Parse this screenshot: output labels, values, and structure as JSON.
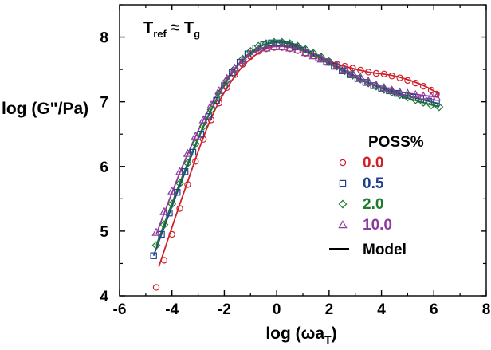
{
  "chart_data": {
    "type": "scatter",
    "xlabel": {
      "text": "log (ωa",
      "sub": "T",
      "close": ")"
    },
    "ylabel": "log (G\"/Pa)",
    "xlim": [
      -6,
      8
    ],
    "ylim": [
      4,
      8.5
    ],
    "xticks": [
      -6,
      -4,
      -2,
      0,
      2,
      4,
      6,
      8
    ],
    "yticks": [
      4,
      5,
      6,
      7,
      8
    ],
    "grid": false,
    "annotation": {
      "main": "T",
      "sub1": "ref",
      "approx": " ≈ T",
      "sub2": "g"
    },
    "legend": {
      "title": "POSS%",
      "placement": "right",
      "model_label": "Model"
    },
    "series": [
      {
        "name": "0.0",
        "marker": "circle",
        "color": "#d0202a",
        "x": [
          -4.6,
          -4.3,
          -4.0,
          -3.7,
          -3.4,
          -3.1,
          -2.8,
          -2.5,
          -2.2,
          -1.9,
          -1.6,
          -1.3,
          -1.0,
          -0.7,
          -0.4,
          -0.1,
          0.2,
          0.5,
          0.8,
          1.1,
          1.4,
          1.7,
          2.0,
          2.3,
          2.6,
          2.9,
          3.2,
          3.5,
          3.8,
          4.1,
          4.4,
          4.7,
          5.0,
          5.3,
          5.6,
          5.9,
          6.1
        ],
        "y": [
          4.13,
          4.55,
          4.95,
          5.35,
          5.72,
          6.08,
          6.42,
          6.72,
          6.98,
          7.22,
          7.42,
          7.58,
          7.7,
          7.78,
          7.82,
          7.84,
          7.84,
          7.82,
          7.79,
          7.75,
          7.71,
          7.66,
          7.62,
          7.58,
          7.55,
          7.52,
          7.49,
          7.46,
          7.44,
          7.43,
          7.4,
          7.37,
          7.33,
          7.29,
          7.24,
          7.18,
          7.12
        ],
        "model_x": [
          -4.5,
          -3.5,
          -2.5,
          -1.5,
          -0.5,
          0.5,
          1.5,
          2.5,
          3.5,
          4.5,
          5.5,
          6.2
        ],
        "model_y": [
          4.45,
          5.65,
          6.75,
          7.45,
          7.8,
          7.86,
          7.7,
          7.56,
          7.46,
          7.4,
          7.27,
          7.12
        ]
      },
      {
        "name": "0.5",
        "marker": "square",
        "color": "#1f3f8f",
        "x": [
          -4.7,
          -4.4,
          -4.1,
          -3.8,
          -3.5,
          -3.2,
          -2.9,
          -2.6,
          -2.3,
          -2.0,
          -1.7,
          -1.4,
          -1.1,
          -0.8,
          -0.5,
          -0.2,
          0.1,
          0.4,
          0.7,
          1.0,
          1.3,
          1.6,
          1.9,
          2.2,
          2.5,
          2.8,
          3.1,
          3.4,
          3.7,
          4.0,
          4.3,
          4.6,
          4.9,
          5.2,
          5.5,
          5.8,
          6.1
        ],
        "y": [
          4.62,
          4.95,
          5.28,
          5.6,
          5.92,
          6.22,
          6.5,
          6.77,
          7.02,
          7.25,
          7.45,
          7.61,
          7.74,
          7.83,
          7.88,
          7.91,
          7.91,
          7.89,
          7.85,
          7.8,
          7.74,
          7.68,
          7.62,
          7.55,
          7.48,
          7.42,
          7.36,
          7.3,
          7.25,
          7.21,
          7.17,
          7.13,
          7.1,
          7.07,
          7.04,
          7.01,
          6.98
        ],
        "model_x": [
          -4.7,
          -3.7,
          -2.7,
          -1.7,
          -0.7,
          0.3,
          1.3,
          2.3,
          3.3,
          4.3,
          5.3,
          6.2
        ],
        "model_y": [
          4.62,
          5.7,
          6.7,
          7.45,
          7.84,
          7.91,
          7.75,
          7.53,
          7.32,
          7.17,
          7.06,
          6.97
        ]
      },
      {
        "name": "2.0",
        "marker": "diamond",
        "color": "#1e7a2c",
        "x": [
          -4.6,
          -4.3,
          -4.0,
          -3.7,
          -3.4,
          -3.1,
          -2.8,
          -2.5,
          -2.2,
          -1.9,
          -1.6,
          -1.3,
          -1.0,
          -0.7,
          -0.4,
          -0.1,
          0.2,
          0.5,
          0.8,
          1.1,
          1.4,
          1.7,
          2.0,
          2.3,
          2.6,
          2.9,
          3.2,
          3.5,
          3.8,
          4.1,
          4.4,
          4.7,
          5.0,
          5.3,
          5.6,
          5.9,
          6.2
        ],
        "y": [
          4.78,
          5.1,
          5.42,
          5.74,
          6.05,
          6.35,
          6.62,
          6.88,
          7.12,
          7.33,
          7.51,
          7.66,
          7.78,
          7.86,
          7.9,
          7.92,
          7.92,
          7.9,
          7.86,
          7.81,
          7.75,
          7.69,
          7.62,
          7.55,
          7.48,
          7.41,
          7.35,
          7.29,
          7.24,
          7.19,
          7.15,
          7.11,
          7.07,
          7.03,
          6.99,
          6.95,
          6.92
        ],
        "model_x": [
          -4.6,
          -3.6,
          -2.6,
          -1.6,
          -0.6,
          0.4,
          1.4,
          2.4,
          3.4,
          4.4,
          5.4,
          6.2
        ],
        "model_y": [
          4.78,
          5.85,
          6.8,
          7.51,
          7.87,
          7.92,
          7.75,
          7.52,
          7.31,
          7.14,
          7.01,
          6.92
        ]
      },
      {
        "name": "10.0",
        "marker": "triangle",
        "color": "#8e3a9e",
        "x": [
          -4.6,
          -4.3,
          -4.0,
          -3.7,
          -3.4,
          -3.1,
          -2.8,
          -2.5,
          -2.2,
          -1.9,
          -1.6,
          -1.3,
          -1.0,
          -0.7,
          -0.4,
          -0.1,
          0.2,
          0.5,
          0.8,
          1.1,
          1.4,
          1.7,
          2.0,
          2.3,
          2.6,
          2.9,
          3.2,
          3.5,
          3.8,
          4.1,
          4.4,
          4.7,
          5.0,
          5.3,
          5.6,
          5.9,
          6.1
        ],
        "y": [
          4.98,
          5.3,
          5.62,
          5.92,
          6.2,
          6.47,
          6.72,
          6.95,
          7.17,
          7.36,
          7.52,
          7.64,
          7.74,
          7.8,
          7.83,
          7.85,
          7.85,
          7.83,
          7.8,
          7.76,
          7.71,
          7.66,
          7.61,
          7.56,
          7.5,
          7.44,
          7.38,
          7.32,
          7.26,
          7.22,
          7.18,
          7.15,
          7.13,
          7.11,
          7.09,
          7.08,
          7.07
        ],
        "model_x": [
          -4.6,
          -3.6,
          -2.6,
          -1.6,
          -0.6,
          0.4,
          1.4,
          2.4,
          3.4,
          4.4,
          5.4,
          6.2
        ],
        "model_y": [
          4.95,
          6.0,
          6.88,
          7.52,
          7.81,
          7.85,
          7.72,
          7.53,
          7.32,
          7.18,
          7.11,
          7.07
        ]
      }
    ]
  }
}
